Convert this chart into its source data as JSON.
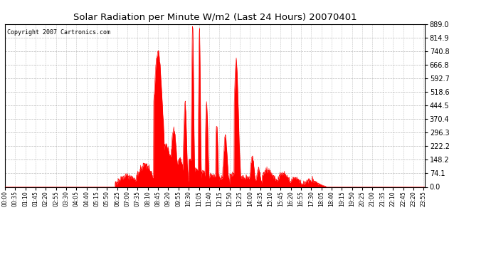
{
  "title": "Solar Radiation per Minute W/m2 (Last 24 Hours) 20070401",
  "copyright_text": "Copyright 2007 Cartronics.com",
  "ymin": 0.0,
  "ymax": 889.0,
  "yticks": [
    0.0,
    74.1,
    148.2,
    222.2,
    296.3,
    370.4,
    444.5,
    518.6,
    592.7,
    666.8,
    740.8,
    814.9,
    889.0
  ],
  "background_color": "#ffffff",
  "plot_bg_color": "#ffffff",
  "line_color": "#ff0000",
  "fill_color": "#ff0000",
  "grid_color": "#888888",
  "title_color": "#000000",
  "n_points": 1440,
  "xtick_labels": [
    "00:00",
    "00:35",
    "01:10",
    "01:45",
    "02:20",
    "02:55",
    "03:30",
    "04:05",
    "04:40",
    "05:15",
    "05:50",
    "06:25",
    "07:00",
    "07:35",
    "08:10",
    "08:45",
    "09:20",
    "09:55",
    "10:30",
    "11:05",
    "11:40",
    "12:15",
    "12:50",
    "13:25",
    "14:00",
    "14:35",
    "15:10",
    "15:45",
    "16:20",
    "16:55",
    "17:30",
    "18:05",
    "18:40",
    "19:15",
    "19:50",
    "20:25",
    "21:00",
    "21:35",
    "22:10",
    "22:45",
    "23:20",
    "23:55"
  ]
}
